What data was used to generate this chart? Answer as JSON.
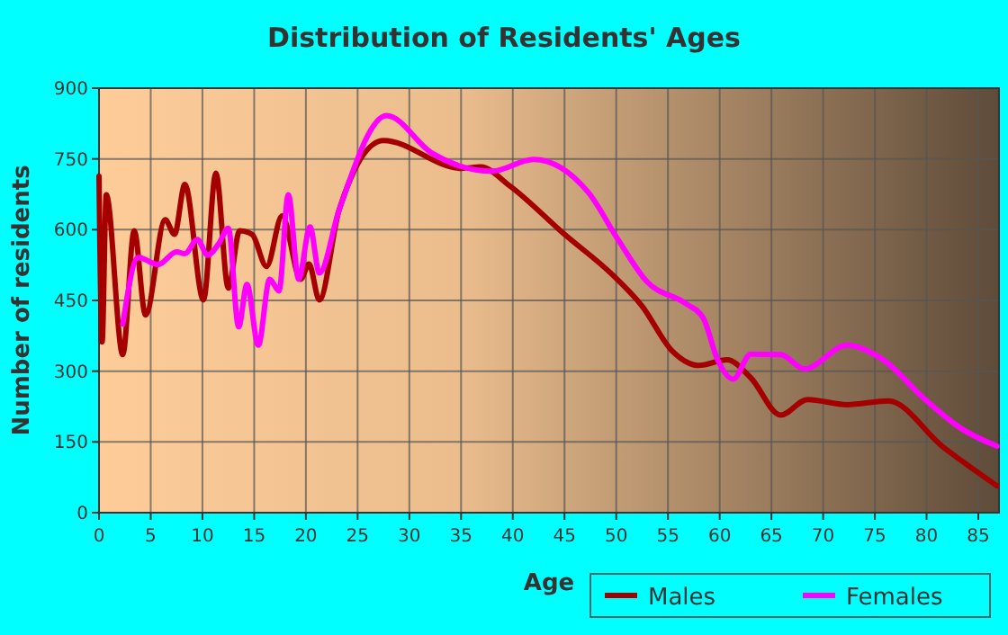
{
  "chart_data": {
    "type": "line",
    "title": "Distribution of Residents' Ages",
    "xlabel": "Age",
    "ylabel": "Number of residents",
    "xlim": [
      0,
      87
    ],
    "xticks": [
      0,
      5,
      10,
      15,
      20,
      25,
      30,
      35,
      40,
      45,
      50,
      55,
      60,
      65,
      70,
      75,
      80,
      85
    ],
    "ylim": [
      0,
      900
    ],
    "yticks": [
      0,
      150,
      300,
      450,
      600,
      750,
      900
    ],
    "grid": true,
    "legend": "bottom right",
    "line_style": "solid",
    "marker": "none",
    "series": [
      {
        "name": "Males",
        "color": "#a50000",
        "x": [
          0,
          0.3,
          0.7,
          2.3,
          3.4,
          4.5,
          6.4,
          7.3,
          8.3,
          10.1,
          11.3,
          12.5,
          13.6,
          14.8,
          16.2,
          17.7,
          19.5,
          20.3,
          21.3,
          23.2,
          27.5,
          35,
          36.9,
          39.7,
          45,
          49.7,
          52.5,
          55.4,
          58,
          60.7,
          63,
          65.9,
          68.5,
          72.3,
          76.3,
          81.5,
          86.8
        ],
        "values": [
          713,
          362,
          674,
          335,
          598,
          419,
          621,
          590,
          696,
          451,
          720,
          476,
          598,
          590,
          522,
          629,
          495,
          527,
          451,
          641,
          789,
          730,
          733,
          693,
          590,
          503,
          438,
          343,
          312,
          324,
          286,
          207,
          240,
          229,
          237,
          141,
          57
        ]
      },
      {
        "name": "Females",
        "color": "#ff00ff",
        "x": [
          2.3,
          3.8,
          5.7,
          7.5,
          8.3,
          9.5,
          10.5,
          11.6,
          12.5,
          13.5,
          14.3,
          15.4,
          16.5,
          17.4,
          18.3,
          19.3,
          20.4,
          21.3,
          23.2,
          27.8,
          32.2,
          38,
          42,
          47.3,
          50.2,
          53,
          56.6,
          58.4,
          59.8,
          61.3,
          63,
          65.9,
          68.2,
          72.3,
          75.8,
          79.8,
          83.3,
          86.8
        ],
        "values": [
          400,
          541,
          526,
          553,
          549,
          579,
          546,
          571,
          603,
          394,
          484,
          355,
          495,
          470,
          674,
          495,
          606,
          508,
          641,
          842,
          762,
          724,
          749,
          679,
          578,
          489,
          445,
          413,
          324,
          283,
          336,
          335,
          305,
          355,
          324,
          241,
          179,
          141
        ]
      }
    ]
  }
}
